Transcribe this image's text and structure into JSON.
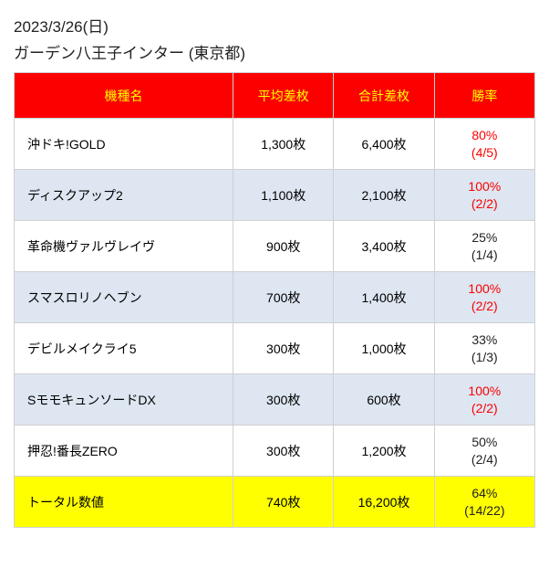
{
  "header": {
    "date": "2023/3/26(日)",
    "location": "ガーデン八王子インター (東京都)"
  },
  "table": {
    "columns": [
      "機種名",
      "平均差枚",
      "合計差枚",
      "勝率"
    ],
    "rows": [
      {
        "name": "沖ドキ!GOLD",
        "avg": "1,300枚",
        "sum": "6,400枚",
        "ratePct": "80%",
        "rateFrac": "(4/5)",
        "rateRed": true,
        "alt": false
      },
      {
        "name": "ディスクアップ2",
        "avg": "1,100枚",
        "sum": "2,100枚",
        "ratePct": "100%",
        "rateFrac": "(2/2)",
        "rateRed": true,
        "alt": true
      },
      {
        "name": "革命機ヴァルヴレイヴ",
        "avg": "900枚",
        "sum": "3,400枚",
        "ratePct": "25%",
        "rateFrac": "(1/4)",
        "rateRed": false,
        "alt": false
      },
      {
        "name": "スマスロリノヘブン",
        "avg": "700枚",
        "sum": "1,400枚",
        "ratePct": "100%",
        "rateFrac": "(2/2)",
        "rateRed": true,
        "alt": true
      },
      {
        "name": "デビルメイクライ5",
        "avg": "300枚",
        "sum": "1,000枚",
        "ratePct": "33%",
        "rateFrac": "(1/3)",
        "rateRed": false,
        "alt": false
      },
      {
        "name": "SモモキュンソードDX",
        "avg": "300枚",
        "sum": "600枚",
        "ratePct": "100%",
        "rateFrac": "(2/2)",
        "rateRed": true,
        "alt": true
      },
      {
        "name": "押忍!番長ZERO",
        "avg": "300枚",
        "sum": "1,200枚",
        "ratePct": "50%",
        "rateFrac": "(2/4)",
        "rateRed": false,
        "alt": false
      }
    ],
    "total": {
      "name": "トータル数値",
      "avg": "740枚",
      "sum": "16,200枚",
      "ratePct": "64%",
      "rateFrac": "(14/22)"
    }
  }
}
